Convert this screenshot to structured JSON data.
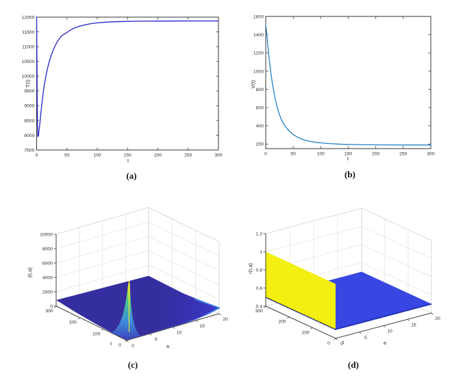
{
  "figure": {
    "background": "#ffffff",
    "description": "Four-panel MATLAB-style figure: two 2D time series and two 3D age-structured surfaces"
  },
  "chart_data": [
    {
      "id": "a",
      "type": "line",
      "caption": "(a)",
      "xlabel": "t",
      "ylabel": "T(t)",
      "xlim": [
        0,
        300
      ],
      "ylim": [
        7500,
        12000
      ],
      "xticks": [
        0,
        50,
        100,
        150,
        200,
        250,
        300
      ],
      "yticks": [
        7500,
        8000,
        8500,
        9000,
        9500,
        10000,
        10500,
        11000,
        11500,
        12000
      ],
      "line_color": "#2222cc",
      "grid": false,
      "points": [
        [
          0,
          12000
        ],
        [
          0.4,
          10600
        ],
        [
          0.9,
          9200
        ],
        [
          1.6,
          8200
        ],
        [
          2.2,
          7950
        ],
        [
          3,
          7990
        ],
        [
          4,
          8180
        ],
        [
          5,
          8330
        ],
        [
          7,
          8760
        ],
        [
          9,
          9140
        ],
        [
          12,
          9620
        ],
        [
          15,
          9980
        ],
        [
          18,
          10270
        ],
        [
          22,
          10580
        ],
        [
          26,
          10820
        ],
        [
          30,
          11010
        ],
        [
          35,
          11200
        ],
        [
          40,
          11340
        ],
        [
          45,
          11420
        ],
        [
          50,
          11480
        ],
        [
          55,
          11550
        ],
        [
          60,
          11610
        ],
        [
          70,
          11690
        ],
        [
          80,
          11740
        ],
        [
          90,
          11780
        ],
        [
          100,
          11805
        ],
        [
          115,
          11830
        ],
        [
          130,
          11845
        ],
        [
          150,
          11856
        ],
        [
          175,
          11862
        ],
        [
          200,
          11866
        ],
        [
          250,
          11869
        ],
        [
          300,
          11870
        ]
      ]
    },
    {
      "id": "b",
      "type": "line",
      "caption": "(b)",
      "xlabel": "t",
      "ylabel": "V(t)",
      "xlim": [
        0,
        300
      ],
      "ylim": [
        150,
        1600
      ],
      "xticks": [
        0,
        50,
        100,
        150,
        200,
        250,
        300
      ],
      "yticks": [
        200,
        400,
        600,
        800,
        1000,
        1200,
        1400,
        1600
      ],
      "line_color": "#2180c4",
      "grid": false,
      "points": [
        [
          0,
          1500
        ],
        [
          1,
          1460
        ],
        [
          2,
          1400
        ],
        [
          3,
          1330
        ],
        [
          5,
          1210
        ],
        [
          7,
          1100
        ],
        [
          9,
          1000
        ],
        [
          12,
          870
        ],
        [
          15,
          765
        ],
        [
          18,
          675
        ],
        [
          22,
          580
        ],
        [
          26,
          505
        ],
        [
          30,
          450
        ],
        [
          35,
          398
        ],
        [
          40,
          360
        ],
        [
          45,
          330
        ],
        [
          50,
          305
        ],
        [
          60,
          268
        ],
        [
          70,
          245
        ],
        [
          80,
          230
        ],
        [
          90,
          220
        ],
        [
          100,
          213
        ],
        [
          120,
          203
        ],
        [
          140,
          197
        ],
        [
          160,
          194
        ],
        [
          200,
          191
        ],
        [
          250,
          190
        ],
        [
          300,
          190
        ]
      ]
    },
    {
      "id": "c",
      "type": "surface",
      "caption": "(c)",
      "xlabel": "a",
      "ylabel": "t",
      "zlabel": "i(t,a)",
      "xlim": [
        0,
        20
      ],
      "ylim": [
        0,
        300
      ],
      "zlim": [
        0,
        10000
      ],
      "xticks": [
        0,
        5,
        10,
        15,
        20
      ],
      "yticks": [
        0,
        100,
        200,
        300
      ],
      "zticks": [
        0,
        2000,
        4000,
        6000,
        8000,
        10000
      ],
      "surface": {
        "base_level": 300,
        "spike": {
          "a": 0.4,
          "t": 0,
          "peak": 8200
        },
        "corner_heights": {
          "t300_a0": 850,
          "t0_a0": 30,
          "t0_a20": 800,
          "t300_a20": 500
        }
      },
      "colors": {
        "surface_low": "#352e9e",
        "surface_front": "#3c38c8",
        "spike_top": "#efe32a",
        "spike_mid": "#49c98f",
        "spike_base": "#3d8ed8",
        "edge_accent": "#4455d8",
        "corner_accent": "#3f7de0"
      }
    },
    {
      "id": "d",
      "type": "surface",
      "caption": "(d)",
      "xlabel": "a",
      "ylabel": "t",
      "zlabel": "r(t,a)",
      "xlim": [
        0,
        20
      ],
      "ylim": [
        0,
        300
      ],
      "zlim": [
        0.4,
        1.2
      ],
      "xticks": [
        0,
        5,
        10,
        15,
        20
      ],
      "yticks": [
        0,
        100,
        200,
        300
      ],
      "zticks": [
        "0.4",
        "0.6",
        "0.8",
        "1",
        "1.2"
      ],
      "surface": {
        "plane_level": 0.5,
        "wall": {
          "a": 0,
          "z_bottom": 0.5,
          "z_top": 1.0
        }
      },
      "colors": {
        "plane": "#3847e2",
        "plane_edge": "#2433b8",
        "wall": "#f2ef11",
        "wall_edge_dash": "#1a1a1a"
      }
    }
  ]
}
